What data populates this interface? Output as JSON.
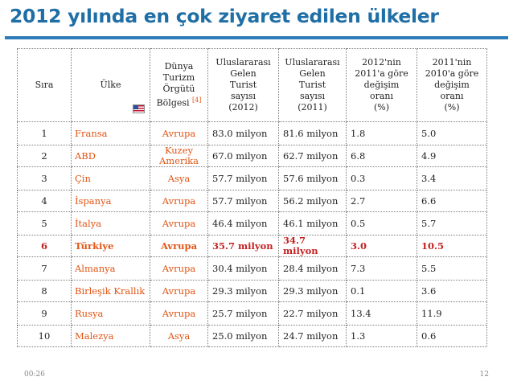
{
  "title": "2012 yılında en çok ziyaret edilen ülkeler",
  "table": {
    "headers": {
      "sira": "Sıra",
      "ulke": "Ülke",
      "bolge": [
        "Dünya",
        "Turizm",
        "Örgütü",
        "Bölgesi"
      ],
      "bolge_ref": "[4]",
      "gelen2012": [
        "Uluslararası",
        "Gelen",
        "Turist",
        "sayısı",
        "(2012)"
      ],
      "gelen2011": [
        "Uluslararası",
        "Gelen",
        "Turist",
        "sayısı",
        "(2011)"
      ],
      "degisim2012": [
        "2012'nin",
        "2011'a göre",
        "değişim",
        "oranı",
        "(%)"
      ],
      "degisim2011": [
        "2011'nin",
        "2010'a göre",
        "değişim",
        "oranı",
        "(%)"
      ]
    },
    "flag_icon": "us-flag-icon",
    "rows": [
      {
        "rank": "1",
        "country": "Fransa",
        "region": "Avrupa",
        "v2012": "83.0 milyon",
        "v2011": "81.6 milyon",
        "c2012": "1.8",
        "c2011": "5.0"
      },
      {
        "rank": "2",
        "country": "ABD",
        "region": "Kuzey Amerika",
        "v2012": "67.0 milyon",
        "v2011": "62.7 milyon",
        "c2012": "6.8",
        "c2011": "4.9"
      },
      {
        "rank": "3",
        "country": "Çin",
        "region": "Asya",
        "v2012": "57.7 milyon",
        "v2011": "57.6 milyon",
        "c2012": "0.3",
        "c2011": "3.4"
      },
      {
        "rank": "4",
        "country": "İspanya",
        "region": "Avrupa",
        "v2012": "57.7 milyon",
        "v2011": "56.2 milyon",
        "c2012": "2.7",
        "c2011": "6.6"
      },
      {
        "rank": "5",
        "country": "İtalya",
        "region": "Avrupa",
        "v2012": "46.4 milyon",
        "v2011": "46.1 milyon",
        "c2012": "0.5",
        "c2011": "5.7"
      },
      {
        "rank": "6",
        "country": "Türkiye",
        "region": "Avrupa",
        "v2012": "35.7 milyon",
        "v2011": "34.7 milyon",
        "c2012": "3.0",
        "c2011": "10.5",
        "highlight": true
      },
      {
        "rank": "7",
        "country": "Almanya",
        "region": "Avrupa",
        "v2012": "30.4 milyon",
        "v2011": "28.4 milyon",
        "c2012": "7.3",
        "c2011": "5.5"
      },
      {
        "rank": "8",
        "country": "Birleşik Krallık",
        "region": "Avrupa",
        "v2012": "29.3 milyon",
        "v2011": "29.3 milyon",
        "c2012": "0.1",
        "c2011": "3.6"
      },
      {
        "rank": "9",
        "country": "Rusya",
        "region": "Avrupa",
        "v2012": "25.7 milyon",
        "v2011": "22.7 milyon",
        "c2012": "13.4",
        "c2011": "11.9"
      },
      {
        "rank": "10",
        "country": "Malezya",
        "region": "Asya",
        "v2012": "25.0 milyon",
        "v2011": "24.7 milyon",
        "c2012": "1.3",
        "c2011": "0.6"
      }
    ]
  },
  "footer": {
    "time": "00:26",
    "page": "12"
  }
}
